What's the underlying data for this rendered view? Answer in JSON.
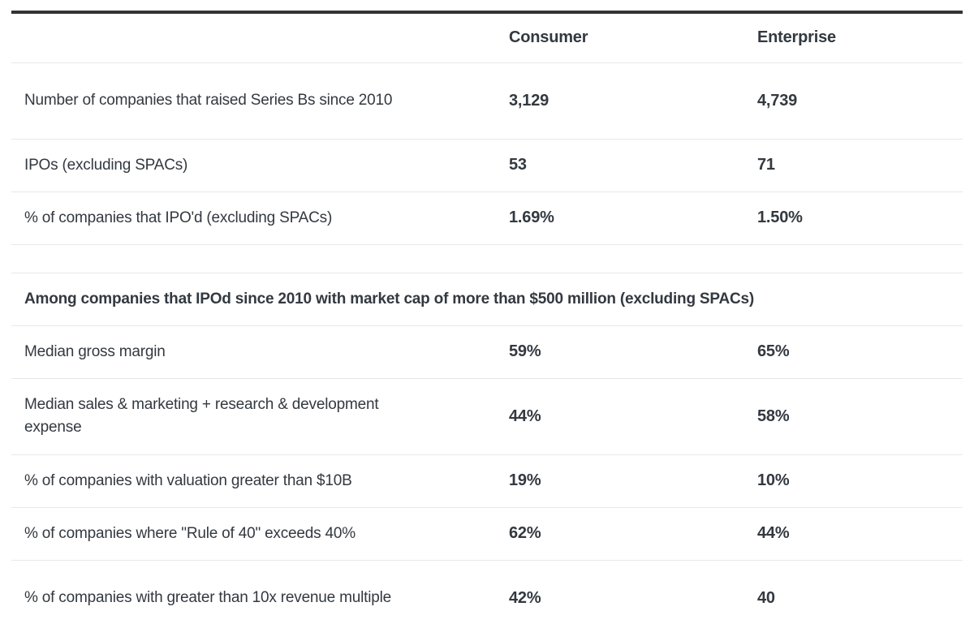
{
  "table": {
    "columns": {
      "consumer": "Consumer",
      "enterprise": "Enterprise"
    },
    "top_rows": [
      {
        "label": "Number of companies that raised Series Bs since 2010",
        "consumer": "3,129",
        "enterprise": "4,739"
      },
      {
        "label": "IPOs (excluding SPACs)",
        "consumer": "53",
        "enterprise": "71"
      },
      {
        "label": "% of companies that IPO'd (excluding SPACs)",
        "consumer": "1.69%",
        "enterprise": "1.50%"
      }
    ],
    "section_title": "Among companies that IPOd since 2010 with market cap of more than $500 million (excluding SPACs)",
    "section_rows": [
      {
        "label": "Median gross margin",
        "consumer": "59%",
        "enterprise": "65%"
      },
      {
        "label": "Median sales & marketing + research & development expense",
        "consumer": "44%",
        "enterprise": "58%"
      },
      {
        "label": "% of companies with valuation greater than $10B",
        "consumer": "19%",
        "enterprise": "10%"
      },
      {
        "label": "% of companies where \"Rule of 40\" exceeds 40%",
        "consumer": "62%",
        "enterprise": "44%"
      },
      {
        "label": "% of companies with greater than 10x revenue multiple",
        "consumer": "42%",
        "enterprise": "40"
      }
    ],
    "colors": {
      "text": "#333940",
      "divider": "#e8e8e8",
      "top_rule": "#333333"
    }
  },
  "chart_data": {
    "type": "table",
    "columns": [
      "",
      "Consumer",
      "Enterprise"
    ],
    "rows": [
      [
        "Number of companies that raised Series Bs since 2010",
        "3,129",
        "4,739"
      ],
      [
        "IPOs (excluding SPACs)",
        "53",
        "71"
      ],
      [
        "% of companies that IPO'd (excluding SPACs)",
        "1.69%",
        "1.50%"
      ],
      [
        "Among companies that IPOd since 2010 with market cap of more than $500 million (excluding SPACs)",
        "",
        ""
      ],
      [
        "Median gross margin",
        "59%",
        "65%"
      ],
      [
        "Median sales & marketing + research & development expense",
        "44%",
        "58%"
      ],
      [
        "% of companies with valuation greater than $10B",
        "19%",
        "10%"
      ],
      [
        "% of companies where \"Rule of 40\" exceeds 40%",
        "62%",
        "44%"
      ],
      [
        "% of companies with greater than 10x revenue multiple",
        "42%",
        "40"
      ]
    ],
    "layout_hints": {
      "top_rule": "thick dark line above header",
      "row_dividers": "light gray",
      "section_title_row_spans_all_columns": true,
      "blank_spacer_row_between_sections": true
    }
  }
}
